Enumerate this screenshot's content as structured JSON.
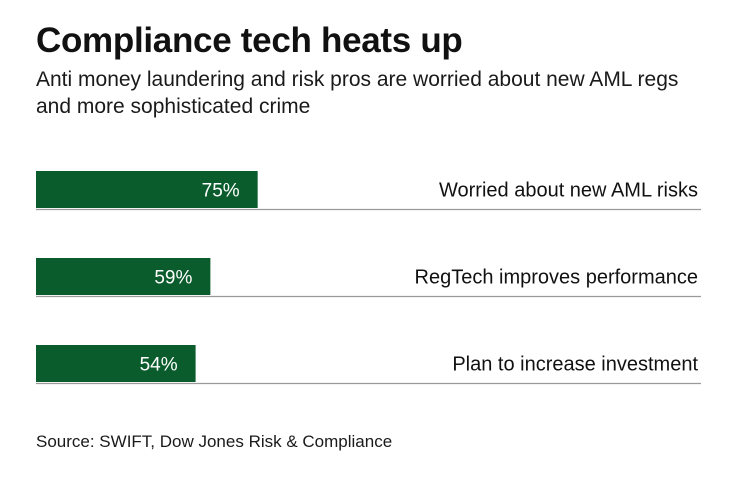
{
  "header": {
    "title": "Compliance tech heats up",
    "subtitle": "Anti money laundering and risk pros are worried about new AML regs and more sophisticated crime"
  },
  "footer": {
    "source": "Source: SWIFT, Dow Jones Risk & Compliance"
  },
  "colors": {
    "bar": "#0b5c2c",
    "bar_label": "#ffffff",
    "divider": "#9a9a9a",
    "text": "#111111"
  },
  "chart_data": {
    "type": "bar",
    "orientation": "horizontal",
    "title": "Compliance tech heats up",
    "subtitle": "Anti money laundering and risk pros are worried about new AML regs and more sophisticated crime",
    "categories": [
      "Worried about new AML risks",
      "RegTech improves performance",
      "Plan to increase investment"
    ],
    "values": [
      75,
      59,
      54
    ],
    "value_labels": [
      "75%",
      "59%",
      "54%"
    ],
    "unit": "%",
    "xlim": [
      0,
      225
    ],
    "grid": false,
    "legend": "none",
    "source": "Source: SWIFT, Dow Jones Risk & Compliance"
  }
}
